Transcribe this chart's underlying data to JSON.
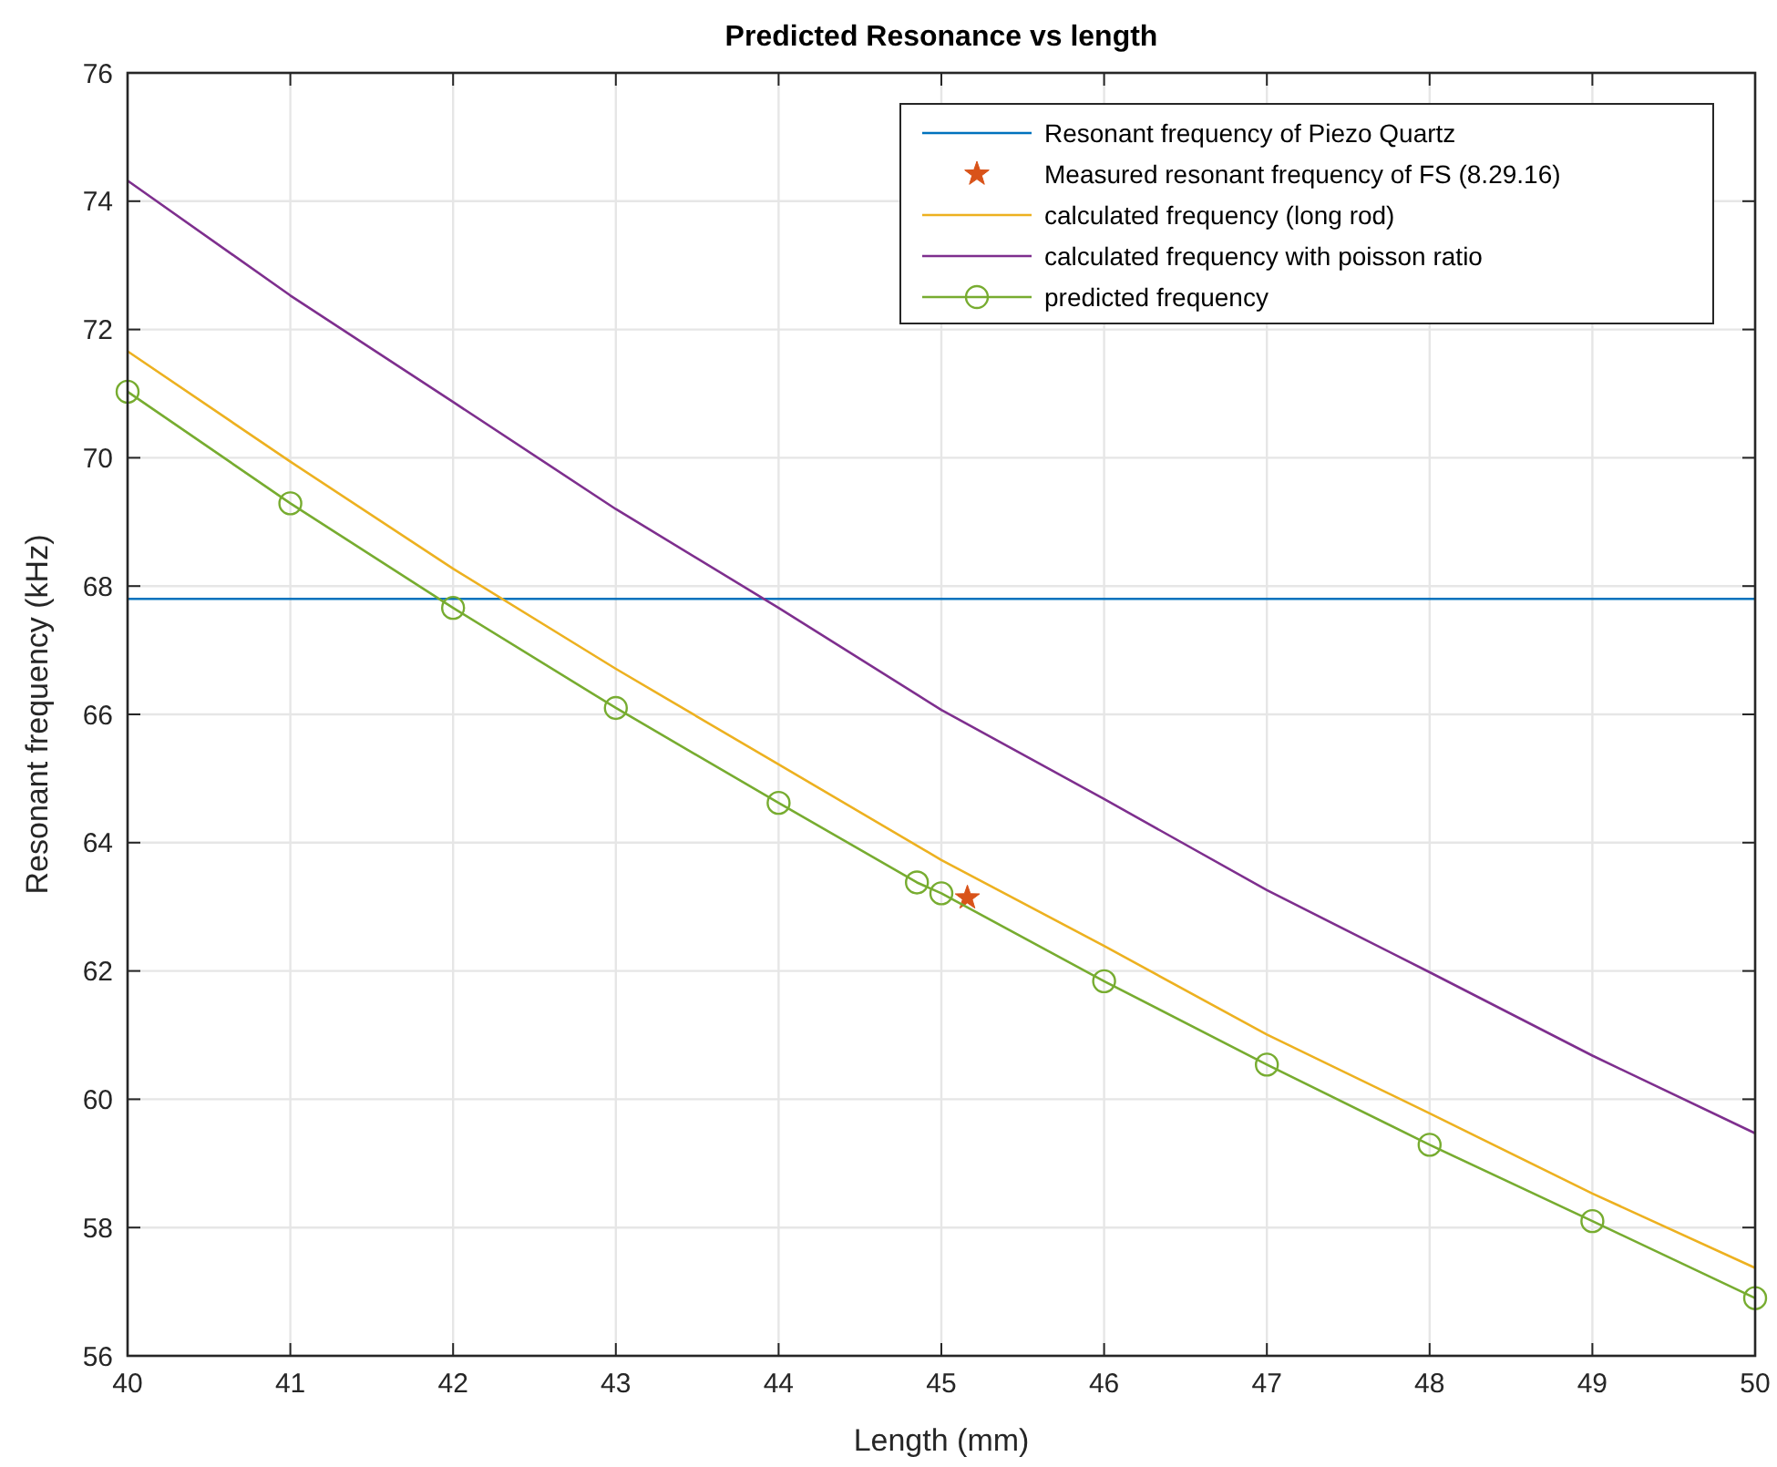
{
  "chart_data": {
    "type": "line",
    "title": "Predicted Resonance vs length",
    "xlabel": "Length (mm)",
    "ylabel": "Resonant frequency (kHz)",
    "xlim": [
      40,
      50
    ],
    "xticks": [
      40,
      41,
      42,
      43,
      44,
      45,
      46,
      47,
      48,
      49,
      50
    ],
    "ylim": [
      56,
      76
    ],
    "yticks": [
      56,
      58,
      60,
      62,
      64,
      66,
      68,
      70,
      72,
      74,
      76
    ],
    "grid": true,
    "legend": "top right",
    "marker": "none",
    "line_style": "solid",
    "series": [
      {
        "name": "Resonant frequency of Piezo Quartz",
        "color": "#0072bd",
        "type": "line",
        "x": [
          40,
          50
        ],
        "values": [
          67.8,
          67.8
        ]
      },
      {
        "name": "Measured resonant frequency of FS (8.29.16)",
        "color": "#d95319",
        "type": "scatter",
        "marker": "star",
        "x": [
          45.16
        ],
        "values": [
          63.14
        ]
      },
      {
        "name": "calculated frequency (long rod)",
        "color": "#edb120",
        "type": "line",
        "x": [
          40,
          41,
          42,
          43,
          44,
          45,
          46,
          47,
          48,
          49,
          50
        ],
        "values": [
          71.66,
          69.94,
          68.27,
          66.71,
          65.22,
          63.73,
          62.39,
          61.01,
          59.78,
          58.53,
          57.37
        ]
      },
      {
        "name": "calculated frequency with poisson ratio",
        "color": "#7e2f8e",
        "type": "line",
        "x": [
          40,
          41,
          42,
          43,
          44,
          45,
          46,
          47,
          48,
          49,
          50
        ],
        "values": [
          74.32,
          72.53,
          70.87,
          69.2,
          67.66,
          66.07,
          64.68,
          63.26,
          61.98,
          60.68,
          59.47
        ]
      },
      {
        "name": "predicted frequency",
        "color": "#77ac30",
        "type": "line",
        "marker": "circle",
        "x": [
          40,
          41,
          42,
          43,
          44,
          44.85,
          45,
          46,
          47,
          48,
          49,
          50
        ],
        "values": [
          71.03,
          69.29,
          67.66,
          66.1,
          64.62,
          63.38,
          63.21,
          61.84,
          60.54,
          59.29,
          58.1,
          56.9
        ]
      }
    ]
  }
}
